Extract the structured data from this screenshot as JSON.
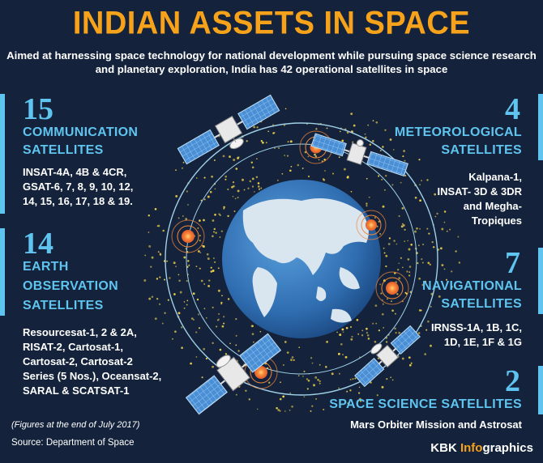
{
  "title": "INDIAN ASSETS IN SPACE",
  "intro": "Aimed at harnessing space technology for national development while pursuing space science research and planetary exploration, India has 42 operational satellites in space",
  "communication": {
    "count": "15",
    "label_line1": "COMMUNICATION",
    "label_line2": "SATELLITES",
    "list": [
      "INSAT-4A, 4B & 4CR,",
      "GSAT-6, 7, 8, 9, 10, 12,",
      "14, 15, 16, 17, 18 & 19."
    ]
  },
  "earth_observation": {
    "count": "14",
    "label_line1": "EARTH",
    "label_line2": "OBSERVATION",
    "label_line3": "SATELLITES",
    "list": [
      "Resourcesat-1, 2 & 2A,",
      "RISAT-2, Cartosat-1,",
      "Cartosat-2, Cartosat-2",
      "Series (5 Nos.), Oceansat-2,",
      "SARAL & SCATSAT-1"
    ]
  },
  "meteorological": {
    "count": "4",
    "label_line1": "METEOROLOGICAL",
    "label_line2": "SATELLITES",
    "list": [
      "Kalpana-1,",
      "INSAT- 3D & 3DR",
      "and Megha-",
      "Tropiques"
    ]
  },
  "navigational": {
    "count": "7",
    "label_line1": "NAVIGATIONAL",
    "label_line2": "SATELLITES",
    "list": [
      "IRNSS-1A, 1B, 1C,",
      "1D, 1E, 1F & 1G"
    ]
  },
  "space_science": {
    "count": "2",
    "label": "SPACE SCIENCE SATELLITES",
    "list": [
      "Mars Orbiter Mission and Astrosat"
    ]
  },
  "footnote": "(Figures at the end of July 2017)",
  "source": "Source: Department of Space",
  "brand": {
    "prefix": "KBK ",
    "highlight": "Info",
    "suffix": "graphics"
  },
  "colors": {
    "background": "#14233b",
    "accent_blue": "#5fc4ef",
    "accent_orange": "#f7a21b",
    "ocean": "#3a7cc0",
    "land": "#d9e6ef"
  },
  "icons": [
    "satellite-icon",
    "earth-globe-icon",
    "orbit-ring-icon",
    "signal-node-icon"
  ]
}
